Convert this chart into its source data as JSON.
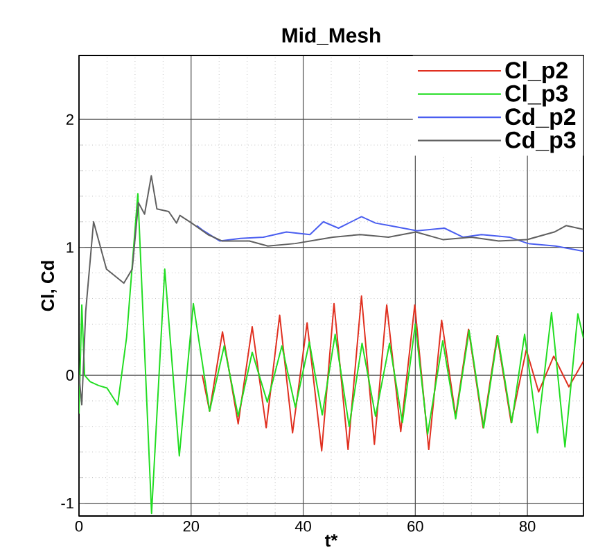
{
  "chart_data": {
    "type": "line",
    "title": "Mid_Mesh",
    "xlabel": "t*",
    "ylabel": "Cl, Cd",
    "xlim": [
      0,
      90
    ],
    "ylim": [
      -1.1,
      2.5
    ],
    "xticks": [
      0,
      20,
      40,
      60,
      80
    ],
    "yticks": [
      -1,
      0,
      1,
      2
    ],
    "grid": true,
    "legend": "top right",
    "series": [
      {
        "name": "Cl_p2",
        "color": "#e03020",
        "x": [
          22,
          23.3,
          25.6,
          28.4,
          30.9,
          33.4,
          35.8,
          38.1,
          40.7,
          43.3,
          45.5,
          48,
          50.4,
          52.7,
          54.9,
          57.4,
          59.9,
          62.4,
          64.7,
          67.2,
          69.5,
          72.1,
          74.6,
          77.1,
          79.8,
          82,
          84.7,
          87.4,
          90
        ],
        "values": [
          0.0,
          -0.28,
          0.34,
          -0.38,
          0.38,
          -0.41,
          0.47,
          -0.45,
          0.41,
          -0.59,
          0.56,
          -0.58,
          0.62,
          -0.54,
          0.55,
          -0.44,
          0.55,
          -0.58,
          0.43,
          -0.32,
          0.36,
          -0.41,
          0.31,
          -0.37,
          0.2,
          -0.13,
          0.15,
          -0.09,
          0.11
        ]
      },
      {
        "name": "Cl_p3",
        "color": "#22dd22",
        "x": [
          0,
          0.5,
          1,
          2,
          3.5,
          5,
          6.9,
          8.5,
          10.5,
          12.95,
          15.3,
          17.9,
          20.4,
          23.3,
          25.9,
          28.4,
          30.9,
          33.6,
          36.2,
          38.6,
          41.1,
          43.4,
          45.7,
          48.2,
          50.5,
          52.9,
          55.4,
          57.7,
          60,
          62.2,
          64.9,
          67.2,
          69.6,
          72.2,
          74.7,
          77.2,
          79.5,
          81.8,
          84.3,
          86.7,
          89,
          90
        ],
        "values": [
          -0.3,
          0.55,
          0.0,
          -0.05,
          -0.08,
          -0.1,
          -0.23,
          0.3,
          1.42,
          -1.08,
          0.83,
          -0.63,
          0.56,
          -0.28,
          0.23,
          -0.32,
          0.18,
          -0.21,
          0.23,
          -0.25,
          0.26,
          -0.31,
          0.32,
          -0.4,
          0.25,
          -0.32,
          0.25,
          -0.37,
          0.4,
          -0.46,
          0.27,
          -0.34,
          0.35,
          -0.41,
          0.31,
          -0.37,
          0.32,
          -0.45,
          0.49,
          -0.56,
          0.48,
          0.29
        ]
      },
      {
        "name": "Cd_p2",
        "color": "#4a5ef0",
        "x": [
          21,
          22.2,
          25.1,
          28.8,
          32.9,
          37,
          41.2,
          43.6,
          46.3,
          50.4,
          52.9,
          55.4,
          60.3,
          65.2,
          68.5,
          71.8,
          76.8,
          80.1,
          85,
          90
        ],
        "values": [
          1.17,
          1.13,
          1.05,
          1.07,
          1.08,
          1.12,
          1.1,
          1.2,
          1.15,
          1.24,
          1.19,
          1.17,
          1.13,
          1.15,
          1.08,
          1.1,
          1.08,
          1.03,
          1.01,
          0.97
        ]
      },
      {
        "name": "Cd_p3",
        "color": "#606060",
        "x": [
          0,
          0.5,
          1.2,
          2.6,
          4.9,
          8,
          9.5,
          10.6,
          11.7,
          12.9,
          13.9,
          16,
          17.4,
          18,
          20.1,
          23,
          25.5,
          30.4,
          33.7,
          38.6,
          42.7,
          45.3,
          50.2,
          55.2,
          60.1,
          65,
          70,
          74.9,
          79.9,
          84.8,
          86.9,
          90
        ],
        "values": [
          0.0,
          -0.23,
          0.5,
          1.2,
          0.83,
          0.72,
          0.83,
          1.35,
          1.26,
          1.56,
          1.3,
          1.28,
          1.19,
          1.25,
          1.19,
          1.1,
          1.05,
          1.05,
          1.01,
          1.03,
          1.06,
          1.08,
          1.1,
          1.08,
          1.12,
          1.06,
          1.08,
          1.05,
          1.06,
          1.12,
          1.17,
          1.14
        ]
      }
    ]
  }
}
